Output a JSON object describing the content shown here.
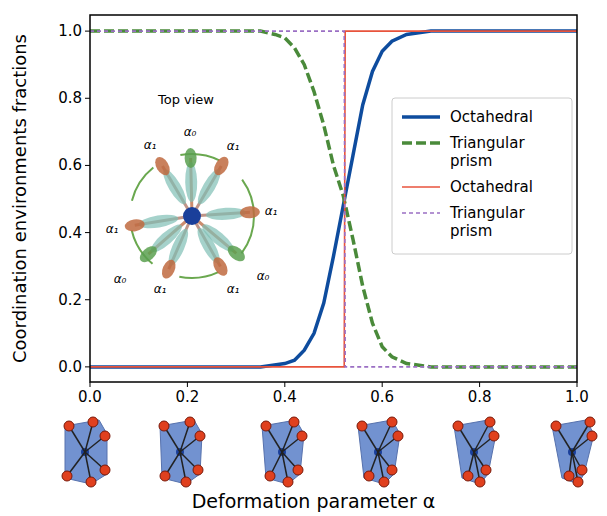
{
  "chart_data": {
    "type": "line",
    "x_label": "Deformation parameter α",
    "y_label": "Coordination environments fractions",
    "xlim": [
      0,
      1
    ],
    "ylim": [
      -0.045,
      1.048
    ],
    "xticks": [
      {
        "value": 0,
        "label": "0.0"
      },
      {
        "value": 0.2,
        "label": "0.2"
      },
      {
        "value": 0.4,
        "label": "0.4"
      },
      {
        "value": 0.6,
        "label": "0.6"
      },
      {
        "value": 0.8,
        "label": "0.8"
      },
      {
        "value": 1,
        "label": "1.0"
      }
    ],
    "yticks": [
      {
        "value": 0,
        "label": "0.0"
      },
      {
        "value": 0.2,
        "label": "0.2"
      },
      {
        "value": 0.4,
        "label": "0.4"
      },
      {
        "value": 0.6,
        "label": "0.6"
      },
      {
        "value": 0.8,
        "label": "0.8"
      },
      {
        "value": 1,
        "label": "1.0"
      }
    ],
    "grid": false,
    "legend": "center right",
    "annotations": [
      "Top view"
    ],
    "inset_labels": [
      "α₀",
      "α₁",
      "α₁",
      "α₀",
      "α₁",
      "α₁",
      "α₀",
      "α₁",
      "α₁"
    ],
    "series": [
      {
        "name": "Octahedral",
        "color": "#0e4c9e",
        "line_style": "solid",
        "x": [
          0,
          0.1,
          0.2,
          0.3,
          0.35,
          0.4,
          0.42,
          0.44,
          0.46,
          0.48,
          0.5,
          0.52,
          0.54,
          0.56,
          0.58,
          0.6,
          0.62,
          0.65,
          0.7,
          0.8,
          0.9,
          1
        ],
        "values": [
          0,
          0,
          0,
          0,
          0,
          0.01,
          0.02,
          0.05,
          0.1,
          0.19,
          0.33,
          0.48,
          0.63,
          0.78,
          0.88,
          0.94,
          0.97,
          0.99,
          1,
          1,
          1,
          1
        ]
      },
      {
        "name": "Triangular prism",
        "color": "#4a8a3a",
        "line_style": "dashed",
        "x": [
          0,
          0.1,
          0.2,
          0.3,
          0.35,
          0.38,
          0.4,
          0.42,
          0.44,
          0.46,
          0.48,
          0.5,
          0.52,
          0.54,
          0.56,
          0.58,
          0.6,
          0.62,
          0.65,
          0.7,
          0.8,
          0.9,
          1
        ],
        "values": [
          1,
          1,
          1,
          1,
          1,
          0.99,
          0.98,
          0.95,
          0.9,
          0.82,
          0.72,
          0.6,
          0.51,
          0.38,
          0.24,
          0.13,
          0.06,
          0.03,
          0.01,
          0,
          0,
          0,
          0
        ]
      },
      {
        "name": "Octahedral",
        "color": "#e8533c",
        "line_style": "solid",
        "x": [
          0,
          0.522,
          0.524,
          1
        ],
        "values": [
          0,
          0,
          1,
          1
        ]
      },
      {
        "name": "Triangular prism",
        "color": "#9b6fc4",
        "line_style": "dashed",
        "x": [
          0,
          0.522,
          0.524,
          1
        ],
        "values": [
          1,
          1,
          0,
          0
        ]
      }
    ]
  }
}
